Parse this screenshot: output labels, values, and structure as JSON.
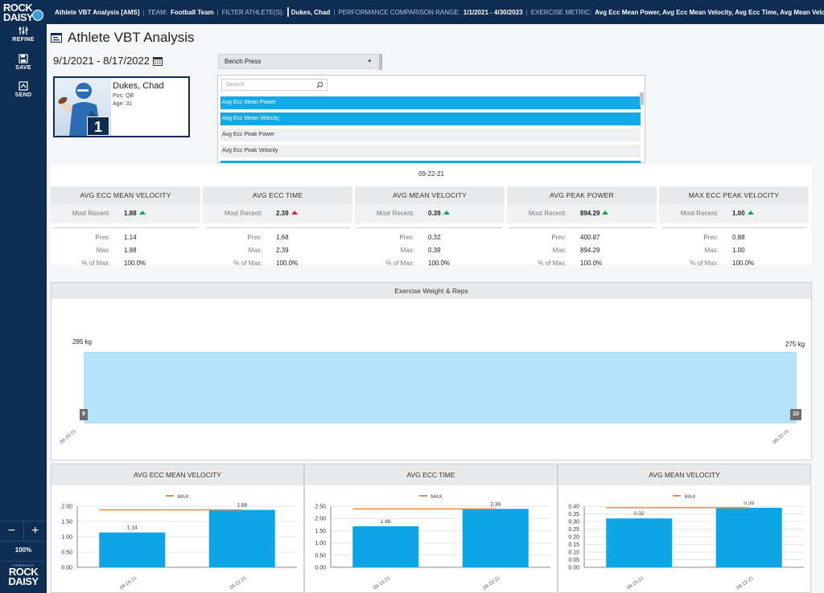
{
  "app": {
    "logo_line1": "ROCK",
    "logo_line2": "DAISY",
    "sidebar": {
      "refine": "REFINE",
      "save": "SAVE",
      "send": "SEND",
      "zoom_out": "−",
      "zoom_in": "+",
      "zoom": "100%",
      "powered_by": "POWERED BY",
      "powered_logo_1": "ROCK",
      "powered_logo_2": "DAISY"
    }
  },
  "topbar": {
    "title": "Athlete VBT Analysis [AMS]",
    "team_label": "TEAM:",
    "team": "Football Team",
    "filter_label": "FILTER ATHLETE(S):",
    "athlete": "Dukes, Chad",
    "range_label": "PERFORMANCE COMPARISON RANGE:",
    "range": "1/1/2021 - 4/30/2023",
    "metric_label": "EXERCISE METRIC:",
    "metrics": "Avg Ecc Mean Power, Avg Ecc Mean Velocity, Avg Ecc Time, Avg Mean Veloc"
  },
  "page": {
    "title": "Athlete VBT Analysis",
    "date_range": "9/1/2021 - 8/17/2022"
  },
  "athlete": {
    "name": "Dukes, Chad",
    "pos": "Pos: QB",
    "age": "Age: 31",
    "number": "1"
  },
  "exercise": {
    "selected": "Bench Press",
    "caret": "▾"
  },
  "metric_list": {
    "search_placeholder": "Search",
    "items": [
      {
        "label": "Avg Ecc Mean Power",
        "selected": true
      },
      {
        "label": "Avg Ecc Mean Velocity",
        "selected": true
      },
      {
        "label": "Avg Ecc Peak Power",
        "selected": false
      },
      {
        "label": "Avg Ecc Peak Velocity",
        "selected": false
      }
    ]
  },
  "stats": {
    "date": "09-22-21",
    "labels": {
      "recent": "Most Recent:",
      "prev": "Prev:",
      "max": "Max:",
      "pct": "% of Max:"
    },
    "columns": [
      {
        "title": "AVG ECC MEAN VELOCITY",
        "recent": "1.88",
        "trend": "up-green",
        "prev": "1.14",
        "max": "1.88",
        "pct": "100.0%"
      },
      {
        "title": "AVG ECC TIME",
        "recent": "2.39",
        "trend": "up-red",
        "prev": "1.68",
        "max": "2.39",
        "pct": "100.0%"
      },
      {
        "title": "AVG MEAN VELOCITY",
        "recent": "0.39",
        "trend": "up-green",
        "prev": "0.32",
        "max": "0.39",
        "pct": "100.0%"
      },
      {
        "title": "AVG PEAK POWER",
        "recent": "894.29",
        "trend": "up-green",
        "prev": "400.87",
        "max": "894.29",
        "pct": "100.0%"
      },
      {
        "title": "MAX ECC PEAK VELOCITY",
        "recent": "1.00",
        "trend": "up-green",
        "prev": "0.88",
        "max": "1.00",
        "pct": "100.0%"
      }
    ]
  },
  "weight_reps": {
    "title": "Exercise Weight & Reps",
    "start_weight": "285 kg",
    "end_weight": "275 kg",
    "start_reps": "9",
    "end_reps": "10",
    "start_date": "09-15-21",
    "end_date": "09-22-21"
  },
  "chart_data": [
    {
      "type": "bar",
      "title": "AVG ECC MEAN VELOCITY",
      "legend": "MAX",
      "categories": [
        "09-15-21",
        "09-22-21"
      ],
      "values": [
        1.14,
        1.88
      ],
      "value_labels": [
        "1.14",
        "1.88"
      ],
      "max_line": 1.88,
      "ylim": [
        0,
        2.0
      ],
      "yticks": [
        "0.00",
        "0.50",
        "1.00",
        "1.50",
        "2.00"
      ],
      "ytick_values": [
        0,
        0.5,
        1.0,
        1.5,
        2.0
      ]
    },
    {
      "type": "bar",
      "title": "AVG ECC TIME",
      "legend": "MAX",
      "categories": [
        "09-15-21",
        "09-22-21"
      ],
      "values": [
        1.68,
        2.39
      ],
      "value_labels": [
        "1.68",
        "2.39"
      ],
      "max_line": 2.39,
      "ylim": [
        0,
        2.5
      ],
      "yticks": [
        "0.00",
        "0.50",
        "1.00",
        "1.50",
        "2.00",
        "2.50"
      ],
      "ytick_values": [
        0,
        0.5,
        1.0,
        1.5,
        2.0,
        2.5
      ]
    },
    {
      "type": "bar",
      "title": "AVG MEAN VELOCITY",
      "legend": "MAX",
      "categories": [
        "09-15-21",
        "09-22-21"
      ],
      "values": [
        0.32,
        0.39
      ],
      "value_labels": [
        "0.32",
        "0.39"
      ],
      "max_line": 0.39,
      "ylim": [
        0,
        0.4
      ],
      "yticks": [
        "0.00",
        "0.05",
        "0.10",
        "0.15",
        "0.20",
        "0.25",
        "0.30",
        "0.35",
        "0.40"
      ],
      "ytick_values": [
        0,
        0.05,
        0.1,
        0.15,
        0.2,
        0.25,
        0.3,
        0.35,
        0.4
      ]
    }
  ],
  "colors": {
    "navy": "#0f2d52",
    "selected": "#14a9e6",
    "bar": "#0ea5e6",
    "max_line": "#f08a3c",
    "area": "#b4e4f8",
    "up_green": "#1aa34a",
    "up_red": "#e0262a"
  }
}
